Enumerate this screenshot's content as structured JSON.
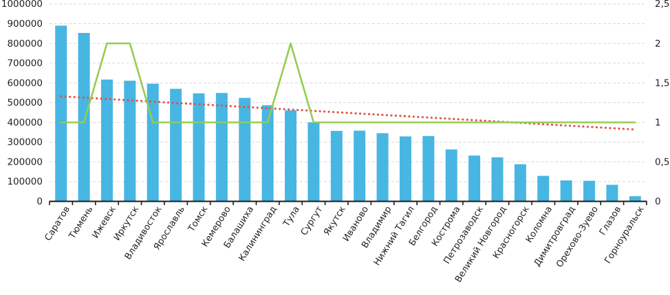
{
  "chart_data": {
    "type": "bar",
    "title": "",
    "subtitle": "",
    "legend": "none",
    "grid": true,
    "categories": [
      "Саратов",
      "Тюмень",
      "Ижевск",
      "Иркутск",
      "Владивосток",
      "Ярославль",
      "Томск",
      "Кемерово",
      "Балашиха",
      "Калининград",
      "Тула",
      "Сургут",
      "Якутск",
      "Иваново",
      "Владимир",
      "Нижний Тагил",
      "Белгород",
      "Кострома",
      "Петрозаводск",
      "Великий Новгород",
      "Красногорск",
      "Коломна",
      "Димитровград",
      "Орехово-Зуево",
      "Глазов",
      "Горноуральск"
    ],
    "series": [
      {
        "name": "bar-series",
        "type": "bar",
        "axis": "left",
        "color": "#47B6E3",
        "values": [
          890000,
          853000,
          617000,
          611000,
          596000,
          570000,
          547000,
          549000,
          524000,
          487000,
          461000,
          400000,
          357000,
          358000,
          345000,
          329000,
          331000,
          263000,
          232000,
          223000,
          188000,
          129000,
          106000,
          104000,
          84000,
          26000
        ]
      },
      {
        "name": "line-series",
        "type": "line",
        "axis": "right",
        "color": "#97CB51",
        "values": [
          1,
          1,
          2,
          2,
          1,
          1,
          1,
          1,
          1,
          1,
          2,
          1,
          1,
          1,
          1,
          1,
          1,
          1,
          1,
          1,
          1,
          1,
          1,
          1,
          1,
          1
        ]
      },
      {
        "name": "trend-series",
        "type": "trendline",
        "axis": "right",
        "style": "dotted",
        "color": "#E25244",
        "start": 1.33,
        "end": 0.91
      }
    ],
    "left_axis": {
      "min": 0,
      "max": 1000000,
      "step": 100000,
      "tick_labels": [
        "0",
        "100000",
        "200000",
        "300000",
        "400000",
        "500000",
        "600000",
        "700000",
        "800000",
        "900000",
        "1000000"
      ]
    },
    "right_axis": {
      "min": 0,
      "max": 2.5,
      "step": 0.5,
      "tick_labels": [
        "0",
        "0,5",
        "1",
        "1,5",
        "2",
        "2,5"
      ]
    },
    "colors": {
      "gridline": "#D8D8D8",
      "axis_line": "#1A1A1A",
      "text": "#1F1F1F",
      "background": "#FFFFFF"
    }
  }
}
